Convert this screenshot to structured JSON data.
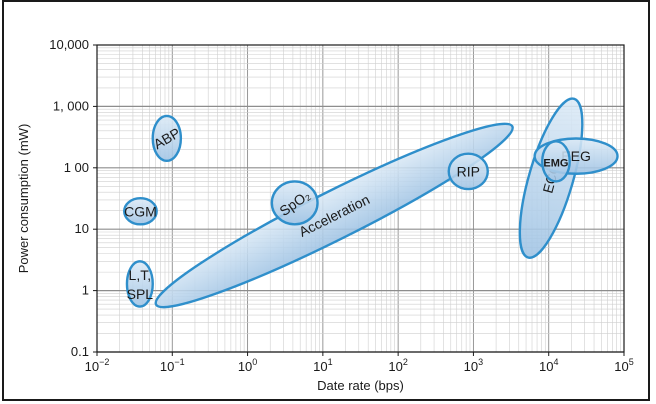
{
  "chart_data": {
    "type": "scatter",
    "xlabel": "Date rate (bps)",
    "ylabel": "Power consumption (mW)",
    "x_scale": "log",
    "y_scale": "log",
    "xlim": [
      0.01,
      100000
    ],
    "ylim": [
      0.1,
      10000
    ],
    "grid": true,
    "x_ticks": [
      {
        "value": 0.01,
        "base": "10",
        "exp": "−2"
      },
      {
        "value": 0.1,
        "base": "10",
        "exp": "−1"
      },
      {
        "value": 1,
        "base": "10",
        "exp": "0"
      },
      {
        "value": 10,
        "base": "10",
        "exp": "1"
      },
      {
        "value": 100,
        "base": "10",
        "exp": "2"
      },
      {
        "value": 1000,
        "base": "10",
        "exp": "3"
      },
      {
        "value": 10000,
        "base": "10",
        "exp": "4"
      },
      {
        "value": 100000,
        "base": "10",
        "exp": "5"
      }
    ],
    "y_ticks": [
      {
        "value": 0.1,
        "label": "0.1"
      },
      {
        "value": 1,
        "label": "1"
      },
      {
        "value": 10,
        "label": "10"
      },
      {
        "value": 100,
        "label": "1 00"
      },
      {
        "value": 1000,
        "label": "1, 000"
      },
      {
        "value": 10000,
        "label": "10,000"
      }
    ],
    "regions": [
      {
        "label": "Acceleration",
        "x": [
          0.08,
          2500
        ],
        "y": [
          0.7,
          400
        ]
      },
      {
        "label": "L,T,\nSPL",
        "x": [
          0.025,
          0.055
        ],
        "y": [
          0.55,
          3
        ]
      },
      {
        "label": "CGM",
        "x": [
          0.023,
          0.062
        ],
        "y": [
          12,
          32
        ]
      },
      {
        "label": "ABP",
        "x": [
          0.055,
          0.13
        ],
        "y": [
          130,
          700
        ]
      },
      {
        "label": "SpO₂",
        "x": [
          2.1,
          8.5
        ],
        "y": [
          12,
          60
        ]
      },
      {
        "label": "RIP",
        "x": [
          470,
          1550
        ],
        "y": [
          45,
          170
        ]
      },
      {
        "label": "ECG",
        "x": [
          5500,
          21000
        ],
        "y": [
          4,
          1150
        ]
      },
      {
        "label": "EEG",
        "x": [
          6500,
          82000
        ],
        "y": [
          80,
          300
        ]
      },
      {
        "label": "EMG",
        "x": [
          8200,
          19000
        ],
        "y": [
          60,
          270
        ]
      }
    ],
    "colors": {
      "fill_light": "#dceaf6",
      "fill_dark": "#9fc3e4",
      "stroke": "#2f8fcb",
      "text": "#1a1a1a"
    }
  }
}
